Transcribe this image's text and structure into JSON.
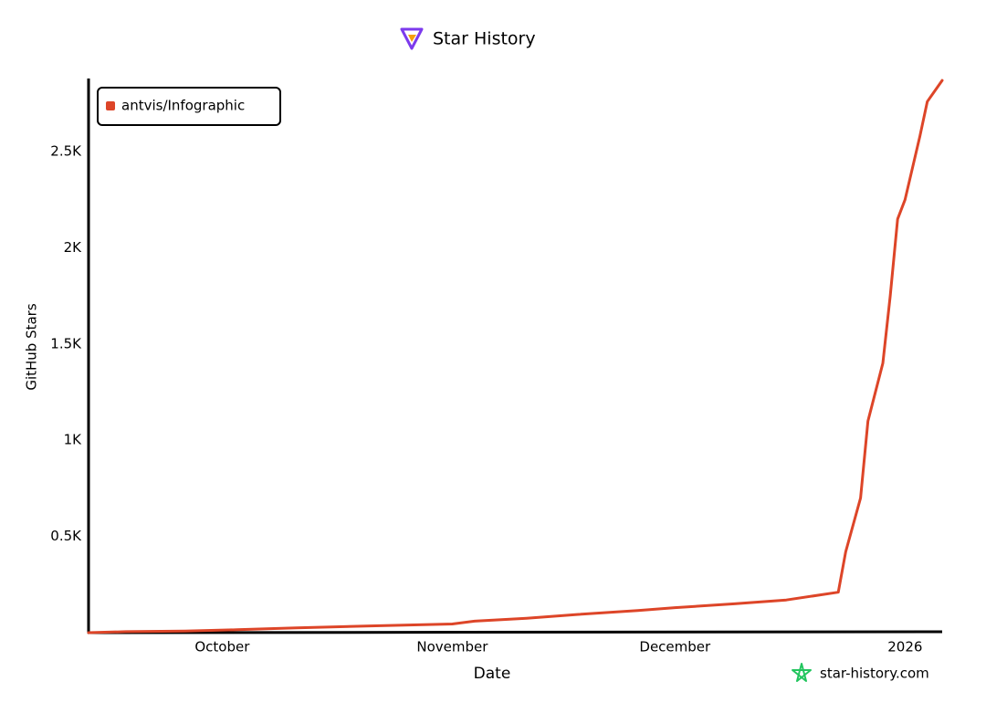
{
  "chart_data": {
    "type": "line",
    "title": "Star History",
    "x_label": "Date",
    "y_label": "GitHub Stars",
    "watermark": "star-history.com",
    "x": [
      "2025-09-13",
      "2025-09-18",
      "2025-09-26",
      "2025-10-03",
      "2025-10-11",
      "2025-10-21",
      "2025-11-01",
      "2025-11-04",
      "2025-11-11",
      "2025-11-18",
      "2025-11-26",
      "2025-12-01",
      "2025-12-09",
      "2025-12-16",
      "2025-12-23",
      "2025-12-24",
      "2025-12-26",
      "2025-12-27",
      "2025-12-29",
      "2025-12-30",
      "2025-12-31",
      "2026-01-01",
      "2026-01-03",
      "2026-01-04",
      "2026-01-06"
    ],
    "series": [
      {
        "name": "antvis/Infographic",
        "color": "#dd4528",
        "values": [
          0,
          5,
          8,
          15,
          25,
          35,
          45,
          60,
          75,
          95,
          115,
          130,
          150,
          170,
          210,
          420,
          700,
          1100,
          1400,
          1750,
          2150,
          2250,
          2580,
          2760,
          2870
        ]
      }
    ],
    "xlim": [
      "2025-09-13",
      "2026-01-06"
    ],
    "xticks": [
      {
        "value": "2025-10-01",
        "label": "October"
      },
      {
        "value": "2025-11-01",
        "label": "November"
      },
      {
        "value": "2025-12-01",
        "label": "December"
      },
      {
        "value": "2026-01-01",
        "label": "2026"
      }
    ],
    "ylim": [
      0,
      2880
    ],
    "yticks": [
      {
        "value": 500,
        "label": "0.5K"
      },
      {
        "value": 1000,
        "label": "1K"
      },
      {
        "value": 1500,
        "label": "1.5K"
      },
      {
        "value": 2000,
        "label": "2K"
      },
      {
        "value": 2500,
        "label": "2.5K"
      }
    ],
    "legend": "top-left",
    "grid": false
  }
}
